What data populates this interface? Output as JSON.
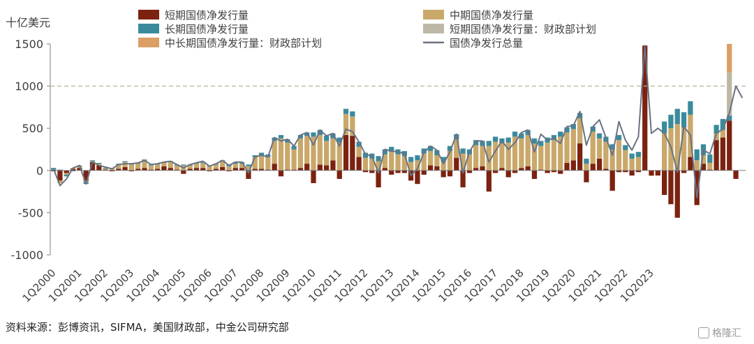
{
  "chart_data": {
    "type": "bar",
    "y_unit_label": "十亿美元",
    "ylim": [
      -1000,
      1500
    ],
    "yticks": [
      -1000,
      -500,
      0,
      500,
      1000,
      1500
    ],
    "x_tick_labels": [
      "1Q2000",
      "1Q2001",
      "1Q2002",
      "1Q2003",
      "1Q2004",
      "1Q2005",
      "1Q2006",
      "1Q2007",
      "1Q2008",
      "1Q2009",
      "1Q2010",
      "1Q2011",
      "1Q2012",
      "1Q2013",
      "1Q2014",
      "1Q2015",
      "1Q2016",
      "1Q2017",
      "1Q2018",
      "1Q2019",
      "1Q2020",
      "1Q2021",
      "1Q2022",
      "1Q2023"
    ],
    "reference_line": 1000,
    "legend": [
      {
        "name": "短期国债净发行量",
        "color": "#7B2210",
        "type": "bar"
      },
      {
        "name": "中期国债净发行量",
        "color": "#C9A86A",
        "type": "bar"
      },
      {
        "name": "长期国债净发行量",
        "color": "#3A8A9C",
        "type": "bar"
      },
      {
        "name": "短期国债净发行量：财政部计划",
        "color": "#BDB8A6",
        "type": "bar"
      },
      {
        "name": "中长期国债净发行量：财政部计划",
        "color": "#DB9F66",
        "type": "bar"
      },
      {
        "name": "国债净发行总量",
        "color": "#6A7282",
        "type": "line"
      }
    ],
    "bills": [
      -10,
      -120,
      -30,
      20,
      30,
      -120,
      100,
      60,
      10,
      -10,
      20,
      40,
      -10,
      20,
      30,
      10,
      20,
      50,
      30,
      10,
      -40,
      20,
      30,
      30,
      -10,
      20,
      40,
      -10,
      30,
      30,
      -100,
      20,
      20,
      10,
      80,
      -70,
      10,
      10,
      30,
      80,
      -150,
      70,
      60,
      120,
      -100,
      420,
      410,
      160,
      -20,
      -30,
      -200,
      30,
      -50,
      -30,
      -30,
      -120,
      -160,
      -50,
      60,
      50,
      -80,
      -70,
      150,
      -200,
      -30,
      30,
      50,
      -250,
      -30,
      30,
      -80,
      -30,
      30,
      50,
      -100,
      10,
      -30,
      -20,
      -40,
      90,
      120,
      320,
      -140,
      80,
      140,
      20,
      -240,
      -20,
      -20,
      -60,
      -20,
      1480,
      -60,
      -60,
      -290,
      -400,
      -560,
      -30,
      160,
      -410,
      80,
      10,
      360,
      390,
      590,
      -100
    ],
    "notes": [
      10,
      -30,
      -20,
      10,
      20,
      -20,
      10,
      20,
      10,
      20,
      50,
      60,
      70,
      60,
      90,
      50,
      50,
      40,
      70,
      50,
      60,
      40,
      50,
      60,
      50,
      50,
      70,
      50,
      50,
      50,
      50,
      140,
      160,
      150,
      270,
      380,
      320,
      240,
      350,
      330,
      400,
      350,
      290,
      260,
      330,
      250,
      230,
      120,
      150,
      140,
      110,
      160,
      220,
      190,
      170,
      100,
      120,
      200,
      170,
      130,
      100,
      230,
      220,
      200,
      190,
      270,
      240,
      290,
      340,
      290,
      330,
      400,
      350,
      370,
      320,
      280,
      330,
      360,
      400,
      360,
      370,
      300,
      80,
      380,
      240,
      320,
      250,
      360,
      240,
      140,
      160,
      0,
      -1,
      0,
      440,
      500,
      550,
      510,
      500,
      120,
      100,
      80,
      80,
      90,
      0
    ],
    "bonds": [
      20,
      10,
      -20,
      -10,
      10,
      -20,
      10,
      10,
      10,
      10,
      10,
      10,
      10,
      10,
      10,
      10,
      10,
      10,
      10,
      10,
      10,
      10,
      10,
      10,
      10,
      10,
      10,
      20,
      20,
      20,
      20,
      20,
      30,
      30,
      40,
      40,
      40,
      40,
      40,
      40,
      50,
      60,
      60,
      60,
      60,
      60,
      60,
      60,
      60,
      60,
      60,
      60,
      60,
      60,
      60,
      60,
      60,
      60,
      60,
      60,
      60,
      60,
      60,
      60,
      60,
      60,
      60,
      60,
      60,
      60,
      60,
      60,
      60,
      60,
      60,
      60,
      60,
      60,
      60,
      60,
      60,
      60,
      60,
      60,
      60,
      60,
      60,
      60,
      60,
      60,
      60,
      0,
      0,
      0,
      140,
      160,
      180,
      180,
      160,
      130,
      130,
      100,
      100,
      130,
      60
    ],
    "plan_bills": [
      null,
      null,
      null,
      null,
      null,
      null,
      null,
      null,
      null,
      null,
      null,
      null,
      null,
      null,
      null,
      null,
      null,
      null,
      null,
      null,
      null,
      null,
      null,
      null,
      null,
      null,
      null,
      null,
      null,
      null,
      null,
      null,
      null,
      null,
      null,
      null,
      null,
      null,
      null,
      null,
      null,
      null,
      null,
      null,
      null,
      null,
      null,
      null,
      null,
      null,
      null,
      null,
      null,
      null,
      null,
      null,
      null,
      null,
      null,
      null,
      null,
      null,
      null,
      null,
      null,
      null,
      null,
      null,
      null,
      null,
      null,
      null,
      null,
      null,
      null,
      null,
      null,
      null,
      null,
      null,
      null,
      null,
      null,
      null,
      null,
      null,
      null,
      null,
      null,
      null,
      null,
      null,
      null,
      null,
      null,
      null,
      null,
      null,
      null,
      null,
      null,
      null,
      null,
      null,
      510
    ],
    "plan_coupons": [
      null,
      null,
      null,
      null,
      null,
      null,
      null,
      null,
      null,
      null,
      null,
      null,
      null,
      null,
      null,
      null,
      null,
      null,
      null,
      null,
      null,
      null,
      null,
      null,
      null,
      null,
      null,
      null,
      null,
      null,
      null,
      null,
      null,
      null,
      null,
      null,
      null,
      null,
      null,
      null,
      null,
      null,
      null,
      null,
      null,
      null,
      null,
      null,
      null,
      null,
      null,
      null,
      null,
      null,
      null,
      null,
      null,
      null,
      null,
      null,
      null,
      null,
      null,
      null,
      null,
      null,
      null,
      null,
      null,
      null,
      null,
      null,
      null,
      null,
      null,
      null,
      null,
      null,
      null,
      null,
      null,
      null,
      null,
      null,
      null,
      null,
      null,
      null,
      null,
      null,
      null,
      null,
      null,
      null,
      null,
      null,
      null,
      null,
      null,
      null,
      null,
      null,
      null,
      null,
      340
    ],
    "total": [
      20,
      -180,
      -100,
      30,
      60,
      -160,
      100,
      60,
      40,
      20,
      70,
      80,
      80,
      90,
      120,
      70,
      80,
      100,
      110,
      70,
      30,
      70,
      90,
      110,
      50,
      80,
      120,
      60,
      100,
      100,
      -30,
      160,
      180,
      160,
      390,
      350,
      370,
      290,
      420,
      450,
      300,
      480,
      410,
      440,
      290,
      490,
      460,
      340,
      190,
      170,
      -30,
      250,
      230,
      220,
      200,
      -60,
      20,
      210,
      290,
      240,
      80,
      220,
      430,
      -30,
      220,
      350,
      350,
      100,
      230,
      350,
      250,
      330,
      450,
      480,
      220,
      430,
      360,
      380,
      320,
      520,
      530,
      700,
      300,
      520,
      600,
      390,
      180,
      580,
      360,
      240,
      400,
      1480,
      440,
      500,
      440,
      280,
      -20,
      520,
      420,
      -320,
      240,
      200,
      440,
      490,
      680,
      1000,
      860
    ]
  },
  "footer": {
    "source": "资料来源：彭博资讯，SIFMA，美国财政部，中金公司研究部",
    "watermark": "格隆汇"
  }
}
